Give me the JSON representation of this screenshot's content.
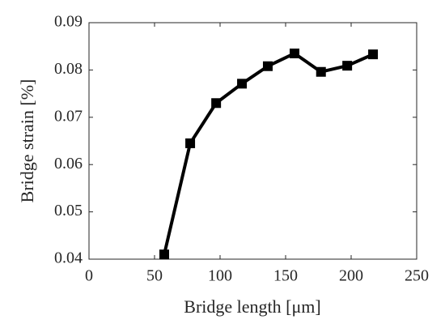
{
  "chart_data": {
    "type": "line",
    "x_label": "Bridge length [μm]",
    "y_label": "Bridge strain [%]",
    "series": [
      {
        "color": "#000000",
        "x": [
          57.4,
          77.2,
          97,
          116.7,
          136.4,
          156.8,
          177,
          197,
          216.7
        ],
        "values": [
          0.041,
          0.0645,
          0.073,
          0.0771,
          0.0808,
          0.0835,
          0.0796,
          0.0809,
          0.0833
        ]
      }
    ],
    "xlim": [
      0,
      250
    ],
    "xticks": [
      0,
      50,
      100,
      150,
      200,
      250
    ],
    "ylim": [
      0.04,
      0.09
    ],
    "yticks": [
      0.04,
      0.05,
      0.06,
      0.07,
      0.08,
      0.09
    ],
    "grid": false
  }
}
